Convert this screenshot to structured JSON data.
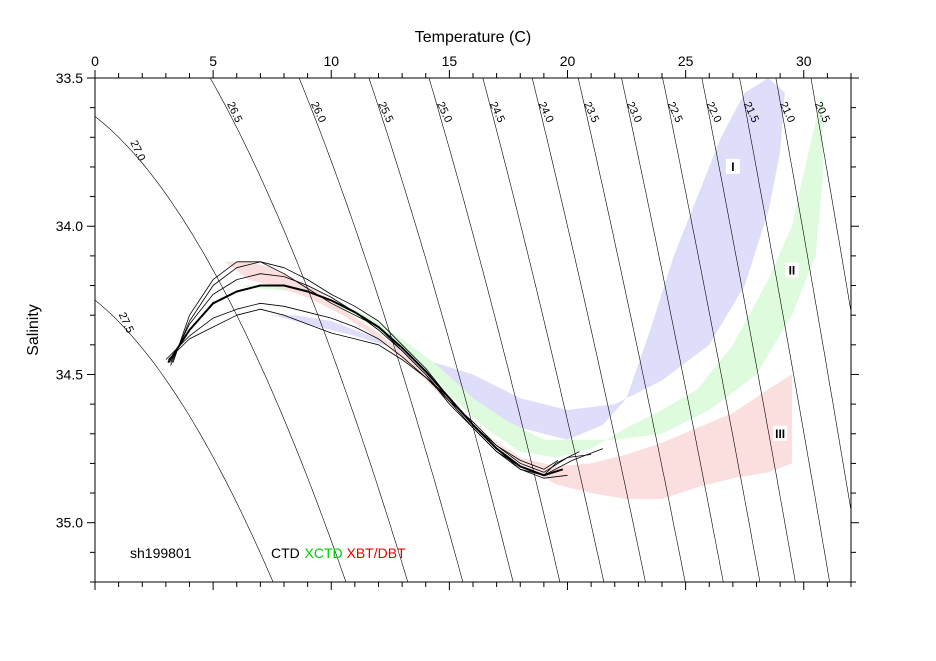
{
  "chart_data": {
    "type": "scatter",
    "xlabel": "Temperature (C)",
    "ylabel": "Salinity",
    "xlim": [
      0,
      32
    ],
    "ylim": [
      35.2,
      33.5
    ],
    "x_ticks": [
      "0",
      "5",
      "10",
      "15",
      "20",
      "25",
      "30"
    ],
    "y_ticks": [
      "33.5",
      "34.0",
      "34.5",
      "35.0"
    ],
    "station_label": "sh199801",
    "legend": [
      {
        "label": "CTD",
        "color": "#000000"
      },
      {
        "label": "XCTD",
        "color": "#00cc00"
      },
      {
        "label": "XBT/DBT",
        "color": "#ee0000"
      }
    ],
    "isopycnals": [
      {
        "label": "27.5",
        "sigma": 27.5
      },
      {
        "label": "27.0",
        "sigma": 27.0
      },
      {
        "label": "26.5",
        "sigma": 26.5
      },
      {
        "label": "26.0",
        "sigma": 26.0
      },
      {
        "label": "25.5",
        "sigma": 25.5
      },
      {
        "label": "25.0",
        "sigma": 25.0
      },
      {
        "label": "24.5",
        "sigma": 24.5
      },
      {
        "label": "24.0",
        "sigma": 24.0
      },
      {
        "label": "23.5",
        "sigma": 23.5
      },
      {
        "label": "23.0",
        "sigma": 23.0
      },
      {
        "label": "22.5",
        "sigma": 22.5
      },
      {
        "label": "22.0",
        "sigma": 22.0
      },
      {
        "label": "21.5",
        "sigma": 21.5
      },
      {
        "label": "21.0",
        "sigma": 21.0
      },
      {
        "label": "20.5",
        "sigma": 20.5
      }
    ],
    "regions": [
      {
        "label": "I",
        "color": "#dedefb",
        "upper": [
          [
            6.0,
            34.3
          ],
          [
            7.5,
            34.3
          ],
          [
            9.0,
            34.33
          ],
          [
            11.0,
            34.37
          ],
          [
            13.0,
            34.42
          ],
          [
            14.5,
            34.52
          ],
          [
            16.0,
            34.62
          ],
          [
            18.0,
            34.68
          ],
          [
            20.0,
            34.72
          ],
          [
            21.5,
            34.67
          ],
          [
            22.5,
            34.58
          ],
          [
            23.5,
            34.35
          ],
          [
            24.5,
            34.1
          ],
          [
            25.5,
            33.9
          ],
          [
            26.5,
            33.7
          ],
          [
            27.5,
            33.55
          ],
          [
            28.5,
            33.5
          ]
        ],
        "lower": [
          [
            29.2,
            33.55
          ],
          [
            29.0,
            33.75
          ],
          [
            28.5,
            33.95
          ],
          [
            27.5,
            34.2
          ],
          [
            26.0,
            34.4
          ],
          [
            24.0,
            34.52
          ],
          [
            22.0,
            34.6
          ],
          [
            20.0,
            34.62
          ],
          [
            18.0,
            34.58
          ],
          [
            16.0,
            34.5
          ],
          [
            14.0,
            34.45
          ],
          [
            12.0,
            34.38
          ],
          [
            10.0,
            34.32
          ],
          [
            8.5,
            34.3
          ],
          [
            7.0,
            34.3
          ]
        ]
      },
      {
        "label": "II",
        "color": "#defbde",
        "upper": [
          [
            6.0,
            34.2
          ],
          [
            7.5,
            34.2
          ],
          [
            9.0,
            34.23
          ],
          [
            10.5,
            34.28
          ],
          [
            12.0,
            34.35
          ],
          [
            13.5,
            34.45
          ],
          [
            15.0,
            34.57
          ],
          [
            16.5,
            34.68
          ],
          [
            18.0,
            34.76
          ],
          [
            19.5,
            34.78
          ],
          [
            21.0,
            34.75
          ],
          [
            22.5,
            34.68
          ],
          [
            24.0,
            34.62
          ],
          [
            25.5,
            34.55
          ],
          [
            27.0,
            34.4
          ],
          [
            28.5,
            34.18
          ],
          [
            29.5,
            34.0
          ],
          [
            30.2,
            33.75
          ],
          [
            30.8,
            33.55
          ]
        ],
        "lower": [
          [
            30.8,
            33.85
          ],
          [
            30.5,
            34.1
          ],
          [
            29.5,
            34.3
          ],
          [
            28.0,
            34.5
          ],
          [
            26.0,
            34.62
          ],
          [
            24.0,
            34.7
          ],
          [
            22.0,
            34.72
          ],
          [
            20.5,
            34.72
          ],
          [
            19.0,
            34.72
          ],
          [
            17.5,
            34.66
          ],
          [
            16.0,
            34.58
          ],
          [
            14.5,
            34.47
          ],
          [
            13.0,
            34.38
          ],
          [
            11.5,
            34.3
          ],
          [
            10.0,
            34.25
          ],
          [
            8.5,
            34.22
          ],
          [
            7.0,
            34.21
          ]
        ]
      },
      {
        "label": "III",
        "color": "#fbdede",
        "upper": [
          [
            5.5,
            34.12
          ],
          [
            6.5,
            34.12
          ],
          [
            7.5,
            34.14
          ],
          [
            8.5,
            34.18
          ],
          [
            9.5,
            34.22
          ],
          [
            10.5,
            34.28
          ],
          [
            12.0,
            34.36
          ],
          [
            13.5,
            34.46
          ],
          [
            15.0,
            34.58
          ],
          [
            16.5,
            34.7
          ],
          [
            18.0,
            34.8
          ],
          [
            19.5,
            34.87
          ],
          [
            21.0,
            34.9
          ],
          [
            22.5,
            34.92
          ],
          [
            24.0,
            34.92
          ],
          [
            25.5,
            34.88
          ],
          [
            27.0,
            34.85
          ],
          [
            28.5,
            34.83
          ],
          [
            29.5,
            34.8
          ]
        ],
        "lower": [
          [
            29.5,
            34.5
          ],
          [
            28.5,
            34.55
          ],
          [
            27.0,
            34.63
          ],
          [
            25.5,
            34.68
          ],
          [
            24.0,
            34.73
          ],
          [
            22.5,
            34.77
          ],
          [
            21.0,
            34.8
          ],
          [
            19.5,
            34.81
          ],
          [
            18.0,
            34.78
          ],
          [
            16.5,
            34.7
          ],
          [
            15.0,
            34.6
          ],
          [
            13.5,
            34.48
          ],
          [
            12.0,
            34.38
          ],
          [
            10.5,
            34.3
          ],
          [
            9.0,
            34.24
          ],
          [
            7.5,
            34.2
          ],
          [
            6.5,
            34.18
          ]
        ]
      }
    ],
    "ctd_profiles": [
      [
        [
          3.1,
          34.46
        ],
        [
          4.0,
          34.35
        ],
        [
          5.0,
          34.26
        ],
        [
          6.0,
          34.22
        ],
        [
          7.0,
          34.2
        ],
        [
          8.0,
          34.2
        ],
        [
          9.0,
          34.22
        ],
        [
          10.0,
          34.25
        ],
        [
          11.0,
          34.29
        ],
        [
          12.0,
          34.34
        ],
        [
          13.0,
          34.41
        ],
        [
          14.0,
          34.49
        ],
        [
          15.0,
          34.58
        ],
        [
          16.0,
          34.67
        ],
        [
          17.0,
          34.75
        ],
        [
          18.0,
          34.81
        ],
        [
          19.0,
          34.84
        ],
        [
          19.8,
          34.82
        ]
      ],
      [
        [
          3.2,
          34.47
        ],
        [
          4.0,
          34.32
        ],
        [
          5.0,
          34.2
        ],
        [
          6.0,
          34.14
        ],
        [
          7.0,
          34.12
        ],
        [
          8.0,
          34.14
        ],
        [
          9.0,
          34.18
        ],
        [
          10.0,
          34.23
        ],
        [
          11.0,
          34.27
        ],
        [
          12.0,
          34.32
        ],
        [
          13.0,
          34.4
        ],
        [
          14.0,
          34.48
        ],
        [
          15.0,
          34.58
        ],
        [
          16.0,
          34.67
        ],
        [
          17.0,
          34.75
        ],
        [
          18.0,
          34.82
        ],
        [
          19.0,
          34.85
        ],
        [
          20.0,
          34.84
        ]
      ],
      [
        [
          3.0,
          34.45
        ],
        [
          4.0,
          34.37
        ],
        [
          5.0,
          34.31
        ],
        [
          6.0,
          34.28
        ],
        [
          7.0,
          34.26
        ],
        [
          8.0,
          34.27
        ],
        [
          9.0,
          34.29
        ],
        [
          10.0,
          34.31
        ],
        [
          11.0,
          34.34
        ],
        [
          12.0,
          34.38
        ],
        [
          13.0,
          34.44
        ],
        [
          14.0,
          34.51
        ],
        [
          15.0,
          34.58
        ],
        [
          16.0,
          34.67
        ],
        [
          17.0,
          34.74
        ],
        [
          18.0,
          34.8
        ],
        [
          19.0,
          34.83
        ],
        [
          20.0,
          34.78
        ],
        [
          21.0,
          34.77
        ]
      ],
      [
        [
          3.3,
          34.46
        ],
        [
          4.0,
          34.3
        ],
        [
          5.0,
          34.18
        ],
        [
          6.0,
          34.12
        ],
        [
          7.0,
          34.12
        ],
        [
          8.0,
          34.16
        ],
        [
          9.0,
          34.21
        ],
        [
          10.0,
          34.26
        ],
        [
          11.0,
          34.3
        ],
        [
          12.0,
          34.34
        ],
        [
          13.0,
          34.42
        ],
        [
          14.0,
          34.5
        ],
        [
          15.0,
          34.6
        ],
        [
          16.0,
          34.68
        ],
        [
          17.0,
          34.76
        ],
        [
          18.0,
          34.82
        ],
        [
          19.0,
          34.84
        ],
        [
          19.5,
          34.8
        ],
        [
          20.5,
          34.76
        ]
      ],
      [
        [
          3.1,
          34.45
        ],
        [
          4.0,
          34.38
        ],
        [
          5.0,
          34.34
        ],
        [
          6.0,
          34.3
        ],
        [
          7.0,
          34.28
        ],
        [
          8.0,
          34.3
        ],
        [
          9.0,
          34.33
        ],
        [
          10.0,
          34.36
        ],
        [
          11.0,
          34.38
        ],
        [
          12.0,
          34.4
        ],
        [
          13.0,
          34.45
        ],
        [
          14.0,
          34.51
        ],
        [
          15.0,
          34.59
        ],
        [
          16.0,
          34.66
        ],
        [
          17.0,
          34.74
        ],
        [
          18.0,
          34.79
        ],
        [
          19.0,
          34.82
        ],
        [
          19.6,
          34.79
        ]
      ],
      [
        [
          3.2,
          34.46
        ],
        [
          4.0,
          34.33
        ],
        [
          5.0,
          34.23
        ],
        [
          6.0,
          34.18
        ],
        [
          7.0,
          34.16
        ],
        [
          8.0,
          34.17
        ],
        [
          9.0,
          34.2
        ],
        [
          10.0,
          34.24
        ],
        [
          11.0,
          34.29
        ],
        [
          12.0,
          34.35
        ],
        [
          13.0,
          34.42
        ],
        [
          14.0,
          34.5
        ],
        [
          15.0,
          34.59
        ],
        [
          16.0,
          34.68
        ],
        [
          17.0,
          34.76
        ],
        [
          18.0,
          34.81
        ],
        [
          19.0,
          34.84
        ],
        [
          20.2,
          34.79
        ],
        [
          21.5,
          34.75
        ]
      ]
    ]
  }
}
